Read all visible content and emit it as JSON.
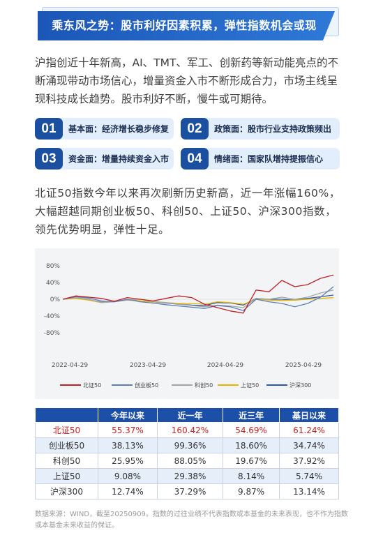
{
  "header": {
    "title": "乘东风之势：股市利好因素积累，弹性指数机会或现"
  },
  "intro": "沪指创近十年新高，AI、TMT、军工、创新药等新动能亮点的不断涌现带动市场信心，增量资金入市不断形成合力，市场主线呈现科技成长趋势。股市利好不断，慢牛或可期待。",
  "factors": [
    {
      "num": "01",
      "label": "基本面：经济增长稳步修复"
    },
    {
      "num": "02",
      "label": "政策面：股市行业支持政策频出"
    },
    {
      "num": "03",
      "label": "资金面：增量持续资金入市"
    },
    {
      "num": "04",
      "label": "情绪面：国家队增持提振信心"
    }
  ],
  "para2": "北证50指数今年以来再次刷新历史新高，近一年涨幅160%，大幅超越同期创业板50、科创50、上证50、沪深300指数，领先优势明显，弹性十足。",
  "chart_data": {
    "type": "line",
    "yticks": [
      "80%",
      "40%",
      "0%",
      "-40%",
      "-80%"
    ],
    "ylim": [
      -80,
      80
    ],
    "xticks": [
      "2022-04-29",
      "2023-04-29",
      "2024-04-29",
      "2025-04-29"
    ],
    "x": [
      "2022-04",
      "2022-06",
      "2022-08",
      "2022-10",
      "2022-12",
      "2023-02",
      "2023-04",
      "2023-06",
      "2023-08",
      "2023-10",
      "2023-12",
      "2024-02",
      "2024-04",
      "2024-06",
      "2024-08",
      "2024-10",
      "2024-12",
      "2025-02",
      "2025-04",
      "2025-06",
      "2025-08",
      "2025-09"
    ],
    "series": [
      {
        "name": "北证50",
        "color": "#c0202a",
        "values": [
          0,
          8,
          5,
          2,
          -5,
          4,
          0,
          -4,
          2,
          8,
          4,
          -12,
          -20,
          -28,
          -33,
          22,
          18,
          45,
          30,
          35,
          50,
          58
        ]
      },
      {
        "name": "创业板50",
        "color": "#5b7fb5",
        "values": [
          0,
          6,
          3,
          -4,
          -6,
          0,
          -6,
          -9,
          -13,
          -16,
          -19,
          -22,
          -15,
          -18,
          -27,
          0,
          -6,
          -10,
          -18,
          -10,
          5,
          30
        ]
      },
      {
        "name": "科创50",
        "color": "#a6a6a6",
        "values": [
          0,
          4,
          0,
          -8,
          -6,
          -2,
          0,
          -5,
          -8,
          -12,
          -15,
          -18,
          -14,
          -16,
          -20,
          2,
          0,
          5,
          0,
          5,
          15,
          22
        ]
      },
      {
        "name": "上证50",
        "color": "#e8b400",
        "values": [
          0,
          2,
          -2,
          -8,
          -4,
          -2,
          -4,
          -6,
          -8,
          -10,
          -10,
          -12,
          -6,
          -8,
          -12,
          0,
          -2,
          -3,
          -2,
          0,
          2,
          4
        ]
      },
      {
        "name": "沪深300",
        "color": "#2b5aa8",
        "values": [
          0,
          3,
          -1,
          -7,
          -5,
          -1,
          -4,
          -6,
          -9,
          -12,
          -14,
          -15,
          -8,
          -9,
          -14,
          2,
          0,
          0,
          -2,
          2,
          6,
          10
        ]
      }
    ]
  },
  "table": {
    "headers": [
      "",
      "今年以来",
      "近一年",
      "近三年",
      "基日以来"
    ],
    "rows": [
      [
        "北证50",
        "55.37%",
        "160.42%",
        "54.69%",
        "61.24%"
      ],
      [
        "创业板50",
        "38.13%",
        "99.36%",
        "18.60%",
        "34.74%"
      ],
      [
        "科创50",
        "25.95%",
        "88.05%",
        "19.67%",
        "37.92%"
      ],
      [
        "上证50",
        "9.08%",
        "29.38%",
        "8.14%",
        "5.74%"
      ],
      [
        "沪深300",
        "12.74%",
        "37.29%",
        "9.87%",
        "13.14%"
      ]
    ]
  },
  "footnote": "数据来源：WIND，截至20250909。指数的过往业绩不代表指数或本基金的未来表现，也不作为指数或本基金未来收益的保证。"
}
